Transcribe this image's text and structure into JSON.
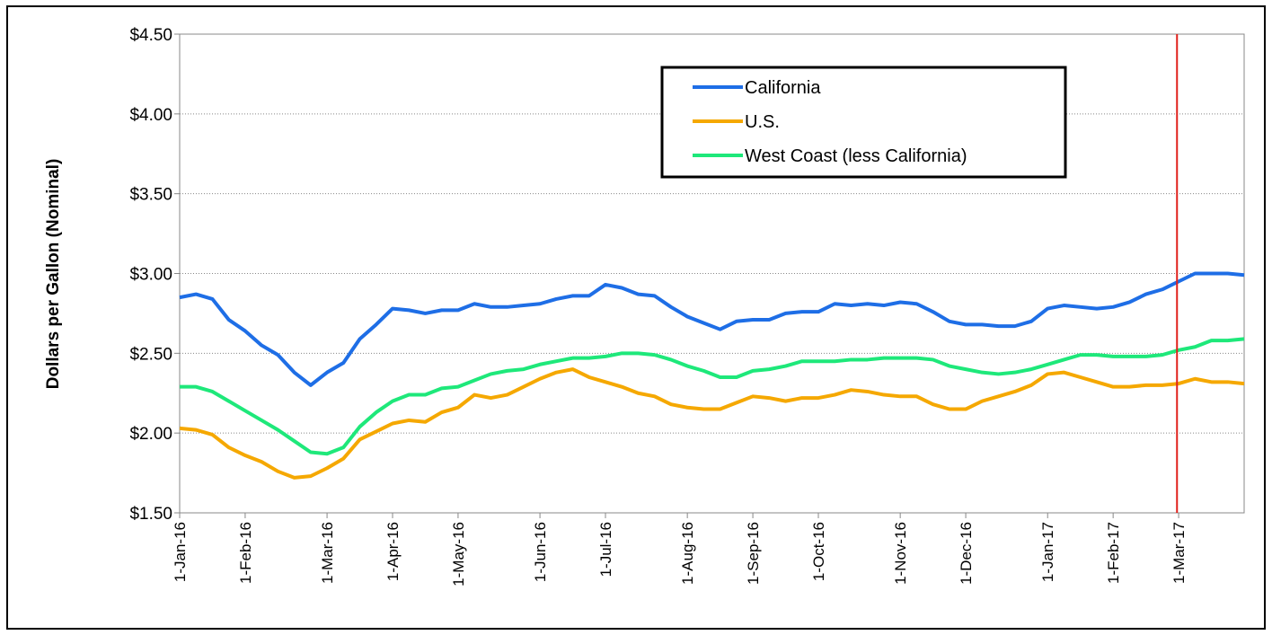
{
  "chart_data": {
    "type": "line",
    "y_label": "Dollars per Gallon (Nominal)",
    "categories": [
      "1-Jan-16",
      null,
      null,
      null,
      "1-Feb-16",
      null,
      null,
      null,
      null,
      "1-Mar-16",
      null,
      null,
      null,
      "1-Apr-16",
      null,
      null,
      null,
      "1-May-16",
      null,
      null,
      null,
      null,
      "1-Jun-16",
      null,
      null,
      null,
      "1-Jul-16",
      null,
      null,
      null,
      null,
      "1-Aug-16",
      null,
      null,
      null,
      "1-Sep-16",
      null,
      null,
      null,
      "1-Oct-16",
      null,
      null,
      null,
      null,
      "1-Nov-16",
      null,
      null,
      null,
      "1-Dec-16",
      null,
      null,
      null,
      null,
      "1-Jan-17",
      null,
      null,
      null,
      "1-Feb-17",
      null,
      null,
      null,
      "1-Mar-17",
      null,
      null,
      null,
      null
    ],
    "series": [
      {
        "name": "California",
        "color": "#1e6ee6",
        "values": [
          2.85,
          2.87,
          2.84,
          2.71,
          2.64,
          2.55,
          2.49,
          2.38,
          2.3,
          2.38,
          2.44,
          2.59,
          2.68,
          2.78,
          2.77,
          2.75,
          2.77,
          2.77,
          2.81,
          2.79,
          2.79,
          2.8,
          2.81,
          2.84,
          2.86,
          2.86,
          2.93,
          2.91,
          2.87,
          2.86,
          2.79,
          2.73,
          2.69,
          2.65,
          2.7,
          2.71,
          2.71,
          2.75,
          2.76,
          2.76,
          2.81,
          2.8,
          2.81,
          2.8,
          2.82,
          2.81,
          2.76,
          2.7,
          2.68,
          2.68,
          2.67,
          2.67,
          2.7,
          2.78,
          2.8,
          2.79,
          2.78,
          2.79,
          2.82,
          2.87,
          2.9,
          2.95,
          3.0,
          3.0,
          3.0,
          2.99
        ]
      },
      {
        "name": "U.S.",
        "color": "#f5a800",
        "values": [
          2.03,
          2.02,
          1.99,
          1.91,
          1.86,
          1.82,
          1.76,
          1.72,
          1.73,
          1.78,
          1.84,
          1.96,
          2.01,
          2.06,
          2.08,
          2.07,
          2.13,
          2.16,
          2.24,
          2.22,
          2.24,
          2.29,
          2.34,
          2.38,
          2.4,
          2.35,
          2.32,
          2.29,
          2.25,
          2.23,
          2.18,
          2.16,
          2.15,
          2.15,
          2.19,
          2.23,
          2.22,
          2.2,
          2.22,
          2.22,
          2.24,
          2.27,
          2.26,
          2.24,
          2.23,
          2.23,
          2.18,
          2.15,
          2.15,
          2.2,
          2.23,
          2.26,
          2.3,
          2.37,
          2.38,
          2.35,
          2.32,
          2.29,
          2.29,
          2.3,
          2.3,
          2.31,
          2.34,
          2.32,
          2.32,
          2.31
        ]
      },
      {
        "name": "West Coast (less California)",
        "color": "#1ee87a",
        "values": [
          2.29,
          2.29,
          2.26,
          2.2,
          2.14,
          2.08,
          2.02,
          1.95,
          1.88,
          1.87,
          1.91,
          2.04,
          2.13,
          2.2,
          2.24,
          2.24,
          2.28,
          2.29,
          2.33,
          2.37,
          2.39,
          2.4,
          2.43,
          2.45,
          2.47,
          2.47,
          2.48,
          2.5,
          2.5,
          2.49,
          2.46,
          2.42,
          2.39,
          2.35,
          2.35,
          2.39,
          2.4,
          2.42,
          2.45,
          2.45,
          2.45,
          2.46,
          2.46,
          2.47,
          2.47,
          2.47,
          2.46,
          2.42,
          2.4,
          2.38,
          2.37,
          2.38,
          2.4,
          2.43,
          2.46,
          2.49,
          2.49,
          2.48,
          2.48,
          2.48,
          2.49,
          2.52,
          2.54,
          2.58,
          2.58,
          2.59
        ]
      }
    ],
    "ylim": [
      1.5,
      4.5
    ],
    "yticks": [
      {
        "value": 1.5,
        "label": "$1.50"
      },
      {
        "value": 2,
        "label": "$2.00"
      },
      {
        "value": 2.5,
        "label": "$2.50"
      },
      {
        "value": 3,
        "label": "$3.00"
      },
      {
        "value": 3.5,
        "label": "$3.50"
      },
      {
        "value": 4,
        "label": "$4.00"
      },
      {
        "value": 4.5,
        "label": "$4.50"
      }
    ],
    "grid": true,
    "legend": "top-right",
    "vline": {
      "at": 60.9,
      "color": "#e0201b"
    }
  }
}
